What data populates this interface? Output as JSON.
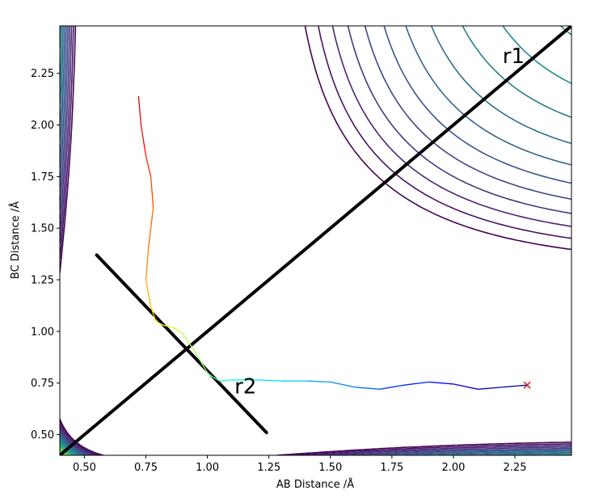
{
  "chart_data": {
    "type": "contour",
    "xlabel": "AB Distance /Å",
    "ylabel": "BC Distance /Å",
    "xlim": [
      0.4,
      2.48
    ],
    "ylim": [
      0.4,
      2.48
    ],
    "xticks": [
      0.5,
      0.75,
      1.0,
      1.25,
      1.5,
      1.75,
      2.0,
      2.25
    ],
    "xtick_labels": [
      "0.50",
      "0.75",
      "1.00",
      "1.25",
      "1.50",
      "1.75",
      "2.00",
      "2.25"
    ],
    "yticks": [
      0.5,
      0.75,
      1.0,
      1.25,
      1.5,
      1.75,
      2.0,
      2.25
    ],
    "ytick_labels": [
      "0.50",
      "0.75",
      "1.00",
      "1.25",
      "1.50",
      "1.75",
      "2.00",
      "2.25"
    ],
    "grid": false,
    "contour_colormap": "viridis",
    "contour_levels": 20,
    "lines": [
      {
        "label": "r1",
        "color": "#000000",
        "x": [
          0.4,
          2.48
        ],
        "y": [
          0.4,
          2.48
        ]
      },
      {
        "label": "r2",
        "color": "#000000",
        "x": [
          0.55,
          1.24
        ],
        "y": [
          1.37,
          0.51
        ]
      }
    ],
    "annotations": [
      {
        "text": "r1",
        "x": 2.2,
        "y": 2.3
      },
      {
        "text": "r2",
        "x": 1.11,
        "y": 0.7
      }
    ],
    "trajectory": {
      "colormap": "jet",
      "start_marker": {
        "symbol": "x",
        "color": "#d62728",
        "x": 2.3,
        "y": 0.74
      },
      "x": [
        2.3,
        2.2,
        2.1,
        2.0,
        1.9,
        1.8,
        1.7,
        1.6,
        1.5,
        1.4,
        1.3,
        1.2,
        1.1,
        1.05,
        1.02,
        1.0,
        0.95,
        0.9,
        0.86,
        0.82,
        0.79,
        0.77,
        0.75,
        0.76,
        0.78,
        0.77,
        0.75,
        0.73,
        0.72
      ],
      "y": [
        0.74,
        0.73,
        0.72,
        0.745,
        0.755,
        0.74,
        0.72,
        0.73,
        0.755,
        0.76,
        0.76,
        0.765,
        0.765,
        0.76,
        0.78,
        0.8,
        0.9,
        0.99,
        1.02,
        1.03,
        1.05,
        1.12,
        1.25,
        1.4,
        1.6,
        1.75,
        1.85,
        2.0,
        2.14
      ]
    }
  }
}
